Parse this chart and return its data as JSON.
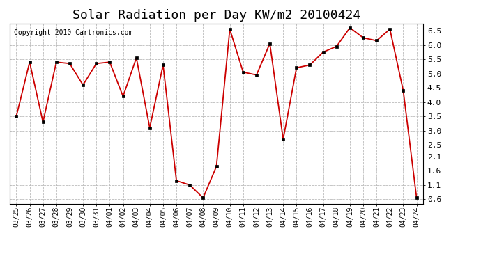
{
  "title": "Solar Radiation per Day KW/m2 20100424",
  "copyright": "Copyright 2010 Cartronics.com",
  "dates": [
    "03/25",
    "03/26",
    "03/27",
    "03/28",
    "03/29",
    "03/30",
    "03/31",
    "04/01",
    "04/02",
    "04/03",
    "04/04",
    "04/05",
    "04/06",
    "04/07",
    "04/08",
    "04/09",
    "04/10",
    "04/11",
    "04/12",
    "04/13",
    "04/14",
    "04/15",
    "04/16",
    "04/17",
    "04/18",
    "04/19",
    "04/20",
    "04/21",
    "04/22",
    "04/23",
    "04/24"
  ],
  "values": [
    3.5,
    5.4,
    3.3,
    5.4,
    5.35,
    4.6,
    5.35,
    5.4,
    4.2,
    5.55,
    3.1,
    5.3,
    1.25,
    1.1,
    0.65,
    1.75,
    6.55,
    5.05,
    4.95,
    6.05,
    2.7,
    5.2,
    5.3,
    5.75,
    5.95,
    6.6,
    6.25,
    6.15,
    6.55,
    4.4,
    0.65
  ],
  "line_color": "#cc0000",
  "marker_color": "#000000",
  "bg_color": "#ffffff",
  "grid_color": "#bbbbbb",
  "ylim_min": 0.45,
  "ylim_max": 6.75,
  "yticks": [
    0.6,
    1.1,
    1.6,
    2.1,
    2.5,
    3.0,
    3.5,
    4.0,
    4.5,
    5.0,
    5.5,
    6.0,
    6.5
  ],
  "title_fontsize": 13,
  "copyright_fontsize": 7,
  "tick_fontsize": 7
}
